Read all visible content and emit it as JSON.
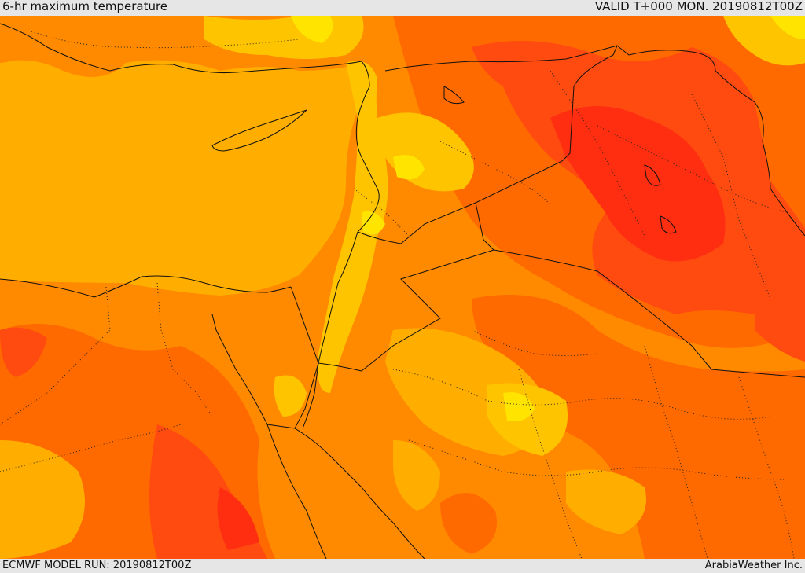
{
  "header": {
    "title": "6-hr maximum temperature",
    "valid": "VALID T+000 MON. 20190812T00Z"
  },
  "footer": {
    "model_run": "ECMWF MODEL RUN: 20190812T00Z",
    "credit": "ArabiaWeather Inc."
  },
  "palette": {
    "sea": "#ffae00",
    "orange": "#ff8a00",
    "dark_orange": "#ff6a00",
    "red_orange": "#ff4a10",
    "red": "#ff2e10",
    "yellow_orange": "#ffc400",
    "yellow": "#ffe400",
    "border": "#111111"
  }
}
